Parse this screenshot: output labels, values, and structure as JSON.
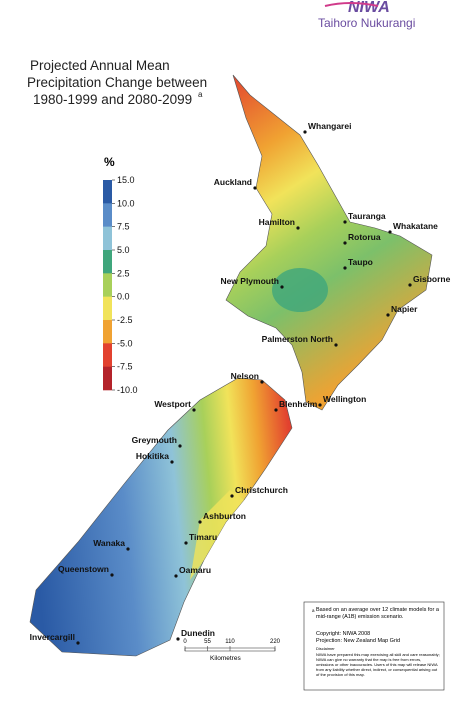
{
  "header": {
    "logo": "NIWA",
    "subtitle": "Taihoro Nukurangi"
  },
  "title": {
    "lines": [
      "Projected Annual Mean",
      "Precipitation Change between",
      "1980-1999 and 2080-2099"
    ],
    "superscript": "a"
  },
  "legend": {
    "unit": "%",
    "ticks": [
      {
        "value": 15,
        "label": "15.0"
      },
      {
        "value": 10,
        "label": "10.0"
      },
      {
        "value": 7.5,
        "label": "7.5"
      },
      {
        "value": 5,
        "label": "5.0"
      },
      {
        "value": 2.5,
        "label": "2.5"
      },
      {
        "value": 0,
        "label": "0.0"
      },
      {
        "value": -2.5,
        "label": "-2.5"
      },
      {
        "value": -5,
        "label": "-5.0"
      },
      {
        "value": -7.5,
        "label": "-7.5"
      },
      {
        "value": -10,
        "label": "-10.0"
      }
    ],
    "colors": [
      "#2a5aa5",
      "#5a8cc8",
      "#8fc3d8",
      "#3fa67c",
      "#a8d05a",
      "#f1e35a",
      "#f0a232",
      "#e2412f",
      "#b4232a"
    ]
  },
  "cities": [
    "Whangarei",
    "Auckland",
    "Tauranga",
    "Hamilton",
    "Whakatane",
    "Rotorua",
    "Taupo",
    "Gisborne",
    "New Plymouth",
    "Napier",
    "Palmerston North",
    "Nelson",
    "Wellington",
    "Blenheim",
    "Westport",
    "Greymouth",
    "Hokitika",
    "Christchurch",
    "Ashburton",
    "Timaru",
    "Wanaka",
    "Queenstown",
    "Oamaru",
    "Dunedin",
    "Invercargill"
  ],
  "scale_bar": {
    "ticks": [
      0,
      55,
      110,
      220
    ],
    "unit": "Kilometres"
  },
  "notes": {
    "footnote": "Based on an average over 12 climate models for a mid-range (A1B) emission scenario.",
    "footnote_mark": "a",
    "copyright": "Copyright: NIWA 2008",
    "projection": "Projection: New Zealand Map Grid",
    "disclaimer_title": "Disclaimer",
    "disclaimer": "NIWA have prepared this map exercising all skill and care reasonably; NIWA can give no warranty that the map is free from errors, omissions or other inaccuracies. Users of this map will release NIWA from any liability whether direct, indirect, or consequential arising out of the provision of this map."
  }
}
